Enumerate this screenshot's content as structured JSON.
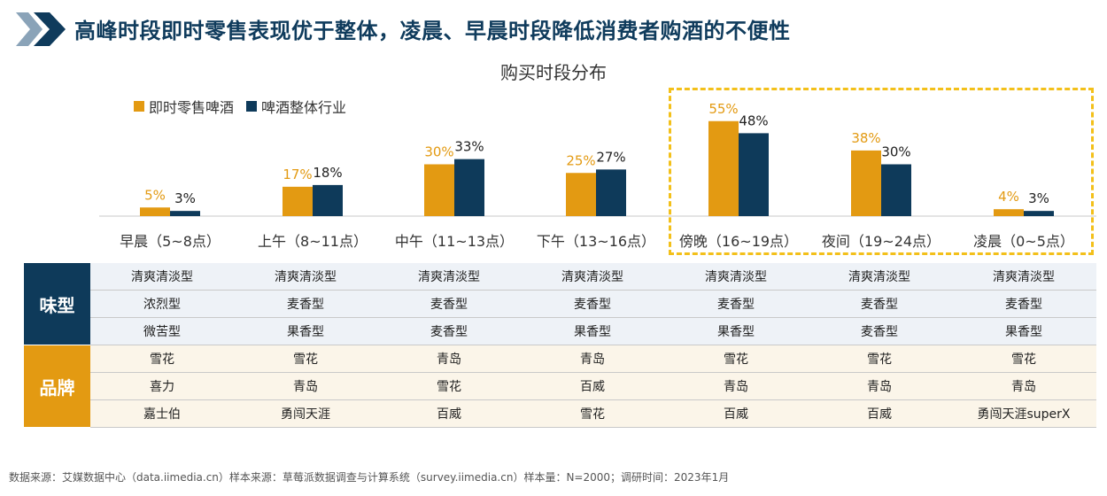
{
  "header": {
    "title": "高峰时段即时零售表现优于整体，凌晨、早晨时段降低消费者购酒的不便性"
  },
  "colors": {
    "instant_retail": "#e39a12",
    "overall": "#0e3a5a",
    "highlight": "#f3c01a",
    "header_chevron": "#0f3b5c"
  },
  "chart_data": {
    "type": "bar",
    "title": "购买时段分布",
    "categories": [
      "早晨（5~8点）",
      "上午（8~11点）",
      "中午（11~13点）",
      "下午（13~16点）",
      "傍晚（16~19点）",
      "夜间（19~24点）",
      "凌晨（0~5点）"
    ],
    "series": [
      {
        "name": "即时零售啤酒",
        "values": [
          5,
          17,
          30,
          25,
          55,
          38,
          4
        ],
        "labels": [
          "5%",
          "17%",
          "30%",
          "25%",
          "55%",
          "38%",
          "4%"
        ]
      },
      {
        "name": "啤酒整体行业",
        "values": [
          3,
          18,
          33,
          27,
          48,
          30,
          3
        ],
        "labels": [
          "3%",
          "18%",
          "33%",
          "27%",
          "48%",
          "30%",
          "3%"
        ]
      }
    ],
    "ylim": [
      0,
      60
    ],
    "legend": "top-left",
    "grid": false,
    "highlight_categories": [
      "傍晚（16~19点）",
      "夜间（19~24点）",
      "凌晨（0~5点）"
    ]
  },
  "table": {
    "groups": [
      {
        "label": "味型",
        "rows": [
          [
            "清爽清淡型",
            "清爽清淡型",
            "清爽清淡型",
            "清爽清淡型",
            "清爽清淡型",
            "清爽清淡型",
            "清爽清淡型"
          ],
          [
            "浓烈型",
            "麦香型",
            "麦香型",
            "麦香型",
            "麦香型",
            "麦香型",
            "麦香型"
          ],
          [
            "微苦型",
            "果香型",
            "麦香型",
            "果香型",
            "果香型",
            "麦香型",
            "果香型"
          ]
        ]
      },
      {
        "label": "品牌",
        "rows": [
          [
            "雪花",
            "雪花",
            "青岛",
            "青岛",
            "雪花",
            "雪花",
            "雪花"
          ],
          [
            "喜力",
            "青岛",
            "雪花",
            "百威",
            "青岛",
            "青岛",
            "青岛"
          ],
          [
            "嘉士伯",
            "勇闯天涯",
            "百威",
            "雪花",
            "百威",
            "百威",
            "勇闯天涯superX"
          ]
        ]
      }
    ]
  },
  "footer": {
    "source": "数据来源：艾媒数据中心（data.iimedia.cn）样本来源：草莓派数据调查与计算系统（survey.iimedia.cn）样本量：N=2000；调研时间：2023年1月"
  }
}
